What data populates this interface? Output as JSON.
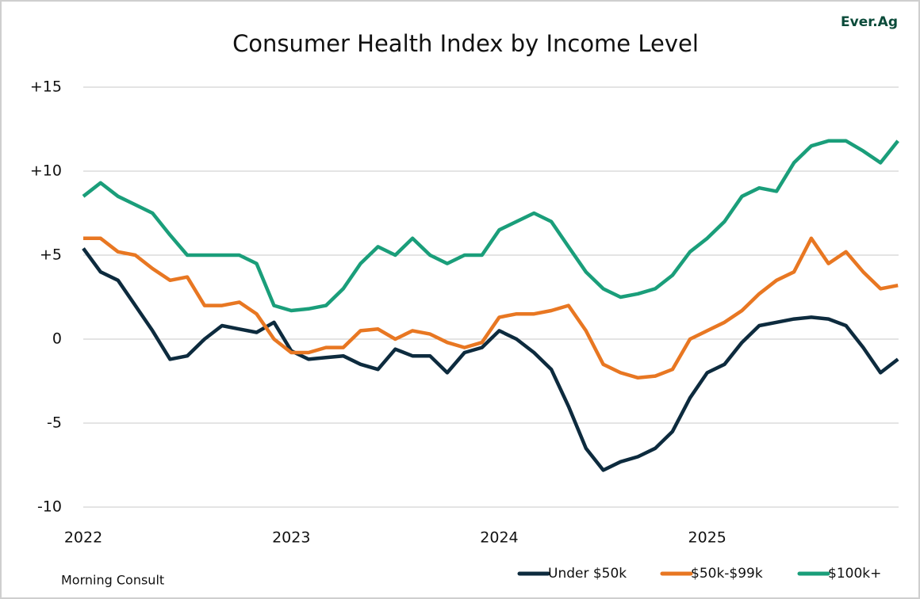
{
  "chart_data": {
    "type": "line",
    "title": "Consumer Health Index by Income Level",
    "logo": "Ever.Ag",
    "source": "Morning Consult",
    "x": [
      2022,
      2022.083,
      2022.167,
      2022.25,
      2022.333,
      2022.417,
      2022.5,
      2022.583,
      2022.667,
      2022.75,
      2022.833,
      2022.917,
      2023,
      2023.083,
      2023.167,
      2023.25,
      2023.333,
      2023.417,
      2023.5,
      2023.583,
      2023.667,
      2023.75,
      2023.833,
      2023.917,
      2024,
      2024.083,
      2024.167,
      2024.25,
      2024.333,
      2024.417,
      2024.5,
      2024.583,
      2024.667,
      2024.75,
      2024.833,
      2024.917,
      2025,
      2025.083,
      2025.167,
      2025.25,
      2025.333,
      2025.417,
      2025.5,
      2025.583,
      2025.667,
      2025.75,
      2025.833,
      2025.917
    ],
    "series": [
      {
        "name": "Under $50k",
        "color": "#0d2b3e",
        "values": [
          5.4,
          4.0,
          3.5,
          2.0,
          0.5,
          -1.2,
          -1.0,
          0.0,
          0.8,
          0.6,
          0.4,
          1.0,
          -0.7,
          -1.2,
          -1.1,
          -1.0,
          -1.5,
          -1.8,
          -0.6,
          -1.0,
          -1.0,
          -2.0,
          -0.8,
          -0.5,
          0.5,
          0.0,
          -0.8,
          -1.8,
          -4.0,
          -6.5,
          -7.8,
          -7.3,
          -7.0,
          -6.5,
          -5.5,
          -3.5,
          -2.0,
          -1.5,
          -0.2,
          0.8,
          1.0,
          1.2,
          1.3,
          1.2,
          0.8,
          -0.5,
          -2.0,
          -1.2
        ]
      },
      {
        "name": "$50k-$99k",
        "color": "#e87722",
        "values": [
          6.0,
          6.0,
          5.2,
          5.0,
          4.2,
          3.5,
          3.7,
          2.0,
          2.0,
          2.2,
          1.5,
          0.0,
          -0.8,
          -0.8,
          -0.5,
          -0.5,
          0.5,
          0.6,
          0.0,
          0.5,
          0.3,
          -0.2,
          -0.5,
          -0.2,
          1.3,
          1.5,
          1.5,
          1.7,
          2.0,
          0.5,
          -1.5,
          -2.0,
          -2.3,
          -2.2,
          -1.8,
          0.0,
          0.5,
          1.0,
          1.7,
          2.7,
          3.5,
          4.0,
          6.0,
          4.5,
          5.2,
          4.0,
          3.0,
          3.2
        ]
      },
      {
        "name": "$100k+",
        "color": "#1a9e7a",
        "values": [
          8.5,
          9.3,
          8.5,
          8.0,
          7.5,
          6.2,
          5.0,
          5.0,
          5.0,
          5.0,
          4.5,
          2.0,
          1.7,
          1.8,
          2.0,
          3.0,
          4.5,
          5.5,
          5.0,
          6.0,
          5.0,
          4.5,
          5.0,
          5.0,
          6.5,
          7.0,
          7.5,
          7.0,
          5.5,
          4.0,
          3.0,
          2.5,
          2.7,
          3.0,
          3.8,
          5.2,
          6.0,
          7.0,
          8.5,
          9.0,
          8.8,
          10.5,
          11.5,
          11.8,
          11.8,
          11.2,
          10.5,
          11.8
        ]
      }
    ],
    "xlim": [
      2022,
      2025.92
    ],
    "xticks": [
      2022,
      2023,
      2024,
      2025
    ],
    "ylim": [
      -10,
      15
    ],
    "yticks": [
      {
        "value": 15,
        "label": "+15"
      },
      {
        "value": 10,
        "label": "+10"
      },
      {
        "value": 5,
        "label": "+5"
      },
      0,
      -5,
      -10
    ],
    "grid": true,
    "legend": "bottom-right"
  }
}
